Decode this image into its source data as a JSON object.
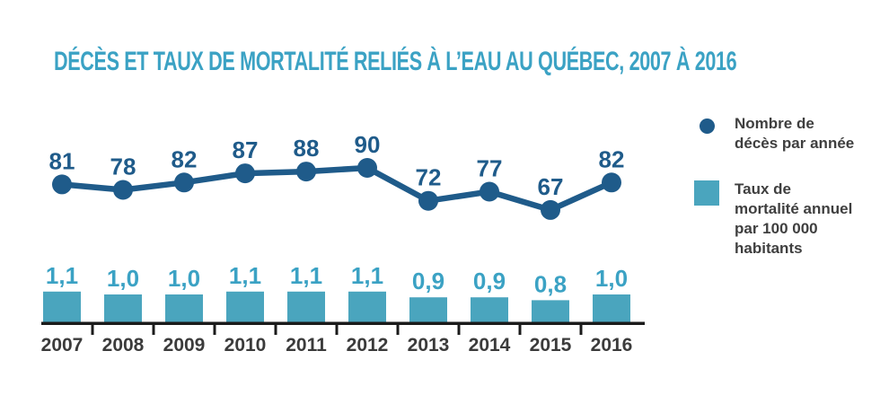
{
  "title": "DÉCÈS ET TAUX DE MORTALITÉ RELIÉS À L’EAU AU QUÉBEC, 2007 À 2016",
  "colors": {
    "title": "#3ba2c4",
    "line": "#1f5b8a",
    "line_value_label": "#1f5b8a",
    "bar": "#4aa5be",
    "bar_value_label": "#3ba2c4",
    "axis": "#1b1b1b",
    "year_label": "#3b3b3b",
    "legend_text": "#3f3f3f"
  },
  "legend": {
    "position": "right",
    "items": [
      {
        "marker": "circle",
        "color": "#1f5b8a",
        "label_lines": [
          "Nombre de",
          "décès par année"
        ]
      },
      {
        "marker": "square",
        "color": "#4aa5be",
        "label_lines": [
          "Taux de",
          "mortalité annuel",
          "par 100 000",
          "habitants"
        ]
      }
    ]
  },
  "chart_data": {
    "type": "line+bar",
    "title": "DÉCÈS ET TAUX DE MORTALITÉ RELIÉS À L’EAU AU QUÉBEC, 2007 À 2016",
    "categories": [
      "2007",
      "2008",
      "2009",
      "2010",
      "2011",
      "2012",
      "2013",
      "2014",
      "2015",
      "2016"
    ],
    "series": [
      {
        "name": "Nombre de décès par année",
        "type": "line",
        "values": [
          81,
          78,
          82,
          87,
          88,
          90,
          72,
          77,
          67,
          82
        ],
        "values_display": [
          "81",
          "78",
          "82",
          "87",
          "88",
          "90",
          "72",
          "77",
          "67",
          "82"
        ]
      },
      {
        "name": "Taux de mortalité annuel par 100 000 habitants",
        "type": "bar",
        "values": [
          1.1,
          1.0,
          1.0,
          1.1,
          1.1,
          1.1,
          0.9,
          0.9,
          0.8,
          1.0
        ],
        "values_display": [
          "1,1",
          "1,0",
          "1,0",
          "1,1",
          "1,1",
          "1,1",
          "0,9",
          "0,9",
          "0,8",
          "1,0"
        ]
      }
    ],
    "xlabel": "",
    "ylabel": "",
    "grid": false,
    "axes_shown": "x-only",
    "data_labels_shown": true,
    "legend_position": "right"
  }
}
